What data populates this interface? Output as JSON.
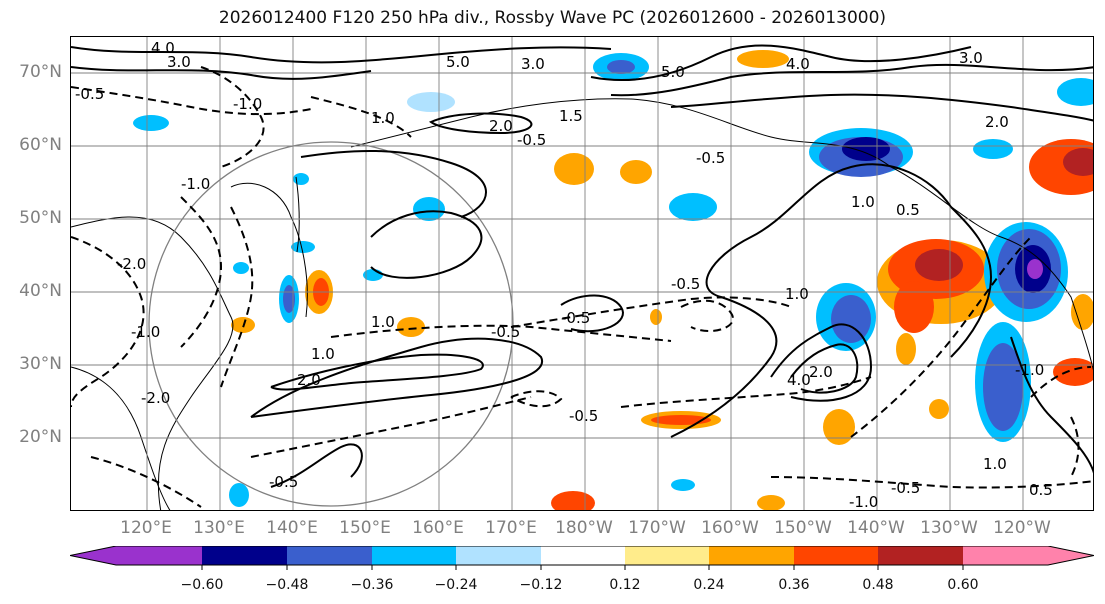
{
  "title": "2026012400 F120 250 hPa div., Rossby Wave PC (2026012600 - 2026013000)",
  "lat_labels": [
    "70°N",
    "60°N",
    "50°N",
    "40°N",
    "30°N",
    "20°N"
  ],
  "lon_labels": [
    "120°E",
    "130°E",
    "140°E",
    "150°E",
    "160°E",
    "170°E",
    "180°W",
    "170°W",
    "160°W",
    "150°W",
    "140°W",
    "130°W",
    "120°W"
  ],
  "colorbar": {
    "ticks": [
      "−0.60",
      "−0.48",
      "−0.36",
      "−0.24",
      "−0.12",
      "0.12",
      "0.24",
      "0.36",
      "0.48",
      "0.60"
    ],
    "colors": [
      "#9a32cd",
      "#00008b",
      "#3a5fcd",
      "#00bfff",
      "#b0e2ff",
      "#ffffff",
      "#ffec8b",
      "#ffa500",
      "#ff4500",
      "#b22222",
      "#ff82ab"
    ]
  },
  "contour_labels": [
    "4.0",
    "3.0",
    "5.0",
    "3.0",
    "-0.5",
    "1.0",
    "-1.0",
    "2.0",
    "1.5",
    "-0.5",
    "5.0",
    "4.0",
    "3.0",
    "2.0",
    "1.0",
    "0.5",
    "-1.0",
    "-2.0",
    "-0.5",
    "1.0",
    "-1.0",
    "-0.5",
    "-0.5",
    "1.0",
    "2.0",
    "-2.0",
    "-0.5",
    "-0.5",
    "1.0",
    "4.0",
    "2.0",
    "-0.5",
    "-1.0",
    "-0.5",
    "1.0",
    "-1.0",
    "0.5"
  ]
}
